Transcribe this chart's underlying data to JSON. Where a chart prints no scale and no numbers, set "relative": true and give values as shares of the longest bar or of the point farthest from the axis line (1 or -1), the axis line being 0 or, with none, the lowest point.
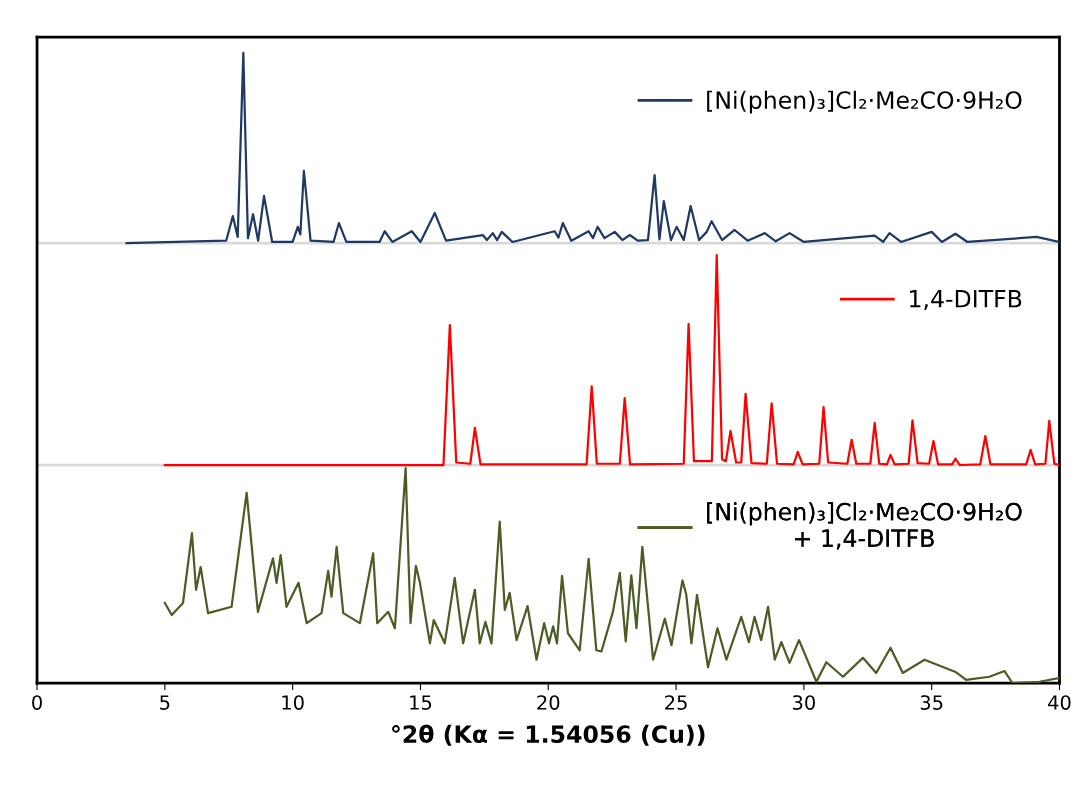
{
  "chart_data": {
    "type": "line",
    "relative": true,
    "xlabel": "°2θ (Kα = 1.54056 (Cu))",
    "xlim": [
      0,
      40
    ],
    "xticks": [
      0,
      5,
      10,
      15,
      20,
      25,
      30,
      35,
      40
    ],
    "grid": false,
    "legend": "right",
    "marker": "none",
    "line_style": "solid",
    "ref_lines": [
      {
        "axis": "y",
        "value": 0.698,
        "color": "#d9d9d9"
      },
      {
        "axis": "y",
        "value": 0.346,
        "color": "#d9d9d9"
      }
    ],
    "series": [
      {
        "name": "[Ni(phen)₃]Cl₂·Me₂CO·9H₂O",
        "color": "#1f3864",
        "x": [
          3.5,
          7.4,
          7.66,
          7.85,
          8.07,
          8.25,
          8.45,
          8.65,
          8.88,
          9.2,
          10.0,
          10.2,
          10.3,
          10.44,
          10.7,
          11.6,
          11.81,
          12.1,
          13.4,
          13.6,
          13.9,
          14.66,
          15.0,
          15.56,
          16.0,
          17.44,
          17.6,
          17.83,
          18.0,
          18.18,
          18.6,
          20.25,
          20.4,
          20.57,
          20.9,
          21.58,
          21.75,
          21.93,
          22.2,
          22.6,
          22.9,
          23.19,
          23.5,
          23.9,
          24.16,
          24.35,
          24.52,
          24.8,
          25.02,
          25.3,
          25.57,
          25.9,
          26.2,
          26.39,
          26.8,
          27.29,
          27.8,
          28.47,
          28.9,
          29.44,
          30.0,
          32.77,
          33.1,
          33.35,
          33.8,
          35.0,
          35.4,
          35.93,
          36.4,
          39.1,
          40.0
        ],
        "values": [
          0.698,
          0.702,
          0.741,
          0.708,
          1.0,
          0.706,
          0.744,
          0.702,
          0.773,
          0.7,
          0.7,
          0.724,
          0.712,
          0.813,
          0.702,
          0.7,
          0.73,
          0.7,
          0.7,
          0.717,
          0.7,
          0.717,
          0.7,
          0.746,
          0.702,
          0.711,
          0.703,
          0.714,
          0.703,
          0.716,
          0.7,
          0.717,
          0.707,
          0.73,
          0.702,
          0.717,
          0.706,
          0.724,
          0.706,
          0.716,
          0.703,
          0.711,
          0.702,
          0.703,
          0.806,
          0.704,
          0.765,
          0.703,
          0.724,
          0.703,
          0.757,
          0.703,
          0.716,
          0.733,
          0.703,
          0.719,
          0.702,
          0.714,
          0.701,
          0.714,
          0.7,
          0.71,
          0.7,
          0.714,
          0.7,
          0.716,
          0.7,
          0.713,
          0.7,
          0.708,
          0.7
        ]
      },
      {
        "name": "1,4-DITFB",
        "color": "#ff0000",
        "x": [
          5.0,
          15.9,
          16.15,
          16.4,
          16.95,
          17.13,
          17.35,
          21.5,
          21.7,
          21.9,
          22.8,
          22.99,
          23.2,
          25.3,
          25.49,
          25.7,
          26.4,
          26.59,
          26.8,
          26.95,
          27.13,
          27.35,
          27.55,
          27.72,
          27.95,
          28.55,
          28.74,
          28.95,
          29.6,
          29.76,
          29.95,
          30.6,
          30.77,
          30.95,
          31.7,
          31.87,
          32.05,
          32.6,
          32.77,
          32.95,
          33.25,
          33.39,
          33.55,
          34.1,
          34.25,
          34.45,
          34.9,
          35.07,
          35.25,
          35.8,
          35.93,
          36.1,
          36.9,
          37.1,
          37.3,
          38.7,
          38.87,
          39.05,
          39.45,
          39.6,
          39.8,
          40.0
        ],
        "values": [
          0.346,
          0.346,
          0.568,
          0.35,
          0.348,
          0.405,
          0.347,
          0.347,
          0.471,
          0.348,
          0.348,
          0.452,
          0.347,
          0.348,
          0.57,
          0.352,
          0.352,
          0.679,
          0.355,
          0.352,
          0.4,
          0.35,
          0.35,
          0.459,
          0.349,
          0.348,
          0.444,
          0.348,
          0.347,
          0.367,
          0.347,
          0.348,
          0.438,
          0.35,
          0.348,
          0.386,
          0.348,
          0.348,
          0.413,
          0.348,
          0.347,
          0.362,
          0.347,
          0.348,
          0.417,
          0.349,
          0.348,
          0.384,
          0.347,
          0.347,
          0.356,
          0.346,
          0.347,
          0.392,
          0.347,
          0.347,
          0.37,
          0.347,
          0.348,
          0.416,
          0.348,
          0.346
        ]
      },
      {
        "name": "[Ni(phen)₃]Cl₂·Me₂CO·9H₂O\n+ 1,4-DITFB",
        "color": "#4a5d23",
        "x": [
          5.0,
          5.27,
          5.71,
          6.06,
          6.22,
          6.4,
          6.69,
          7.61,
          8.2,
          8.64,
          9.23,
          9.37,
          9.53,
          9.76,
          10.23,
          10.55,
          11.13,
          11.39,
          11.52,
          11.72,
          11.98,
          12.63,
          13.15,
          13.31,
          13.74,
          14.0,
          14.42,
          14.61,
          14.82,
          14.98,
          15.37,
          15.52,
          15.95,
          16.34,
          16.67,
          17.13,
          17.32,
          17.54,
          17.78,
          18.1,
          18.3,
          18.49,
          18.76,
          19.19,
          19.54,
          19.84,
          20.03,
          20.19,
          20.34,
          20.54,
          20.77,
          21.23,
          21.58,
          21.88,
          22.08,
          22.53,
          22.8,
          23.03,
          23.25,
          23.45,
          23.68,
          24.1,
          24.56,
          24.82,
          25.25,
          25.4,
          25.6,
          25.82,
          26.25,
          26.62,
          26.97,
          27.55,
          27.85,
          28.07,
          28.33,
          28.6,
          28.86,
          29.12,
          29.44,
          29.81,
          30.49,
          30.88,
          31.53,
          32.31,
          32.83,
          33.39,
          33.87,
          34.72,
          35.96,
          36.35,
          37.26,
          37.85,
          38.16,
          39.22,
          40.0
        ],
        "values": [
          0.127,
          0.108,
          0.127,
          0.238,
          0.148,
          0.184,
          0.111,
          0.121,
          0.302,
          0.113,
          0.198,
          0.159,
          0.203,
          0.121,
          0.159,
          0.095,
          0.111,
          0.178,
          0.137,
          0.216,
          0.111,
          0.095,
          0.206,
          0.095,
          0.113,
          0.087,
          0.341,
          0.095,
          0.186,
          0.159,
          0.063,
          0.1,
          0.063,
          0.167,
          0.063,
          0.148,
          0.063,
          0.097,
          0.063,
          0.256,
          0.116,
          0.143,
          0.068,
          0.122,
          0.037,
          0.095,
          0.063,
          0.09,
          0.063,
          0.17,
          0.079,
          0.052,
          0.197,
          0.052,
          0.05,
          0.113,
          0.175,
          0.066,
          0.171,
          0.087,
          0.216,
          0.037,
          0.102,
          0.06,
          0.163,
          0.14,
          0.063,
          0.14,
          0.025,
          0.087,
          0.037,
          0.105,
          0.065,
          0.105,
          0.068,
          0.121,
          0.037,
          0.065,
          0.032,
          0.068,
          0.002,
          0.033,
          0.01,
          0.04,
          0.016,
          0.056,
          0.016,
          0.037,
          0.017,
          0.005,
          0.01,
          0.019,
          0.0,
          0.002,
          0.008
        ]
      }
    ]
  }
}
